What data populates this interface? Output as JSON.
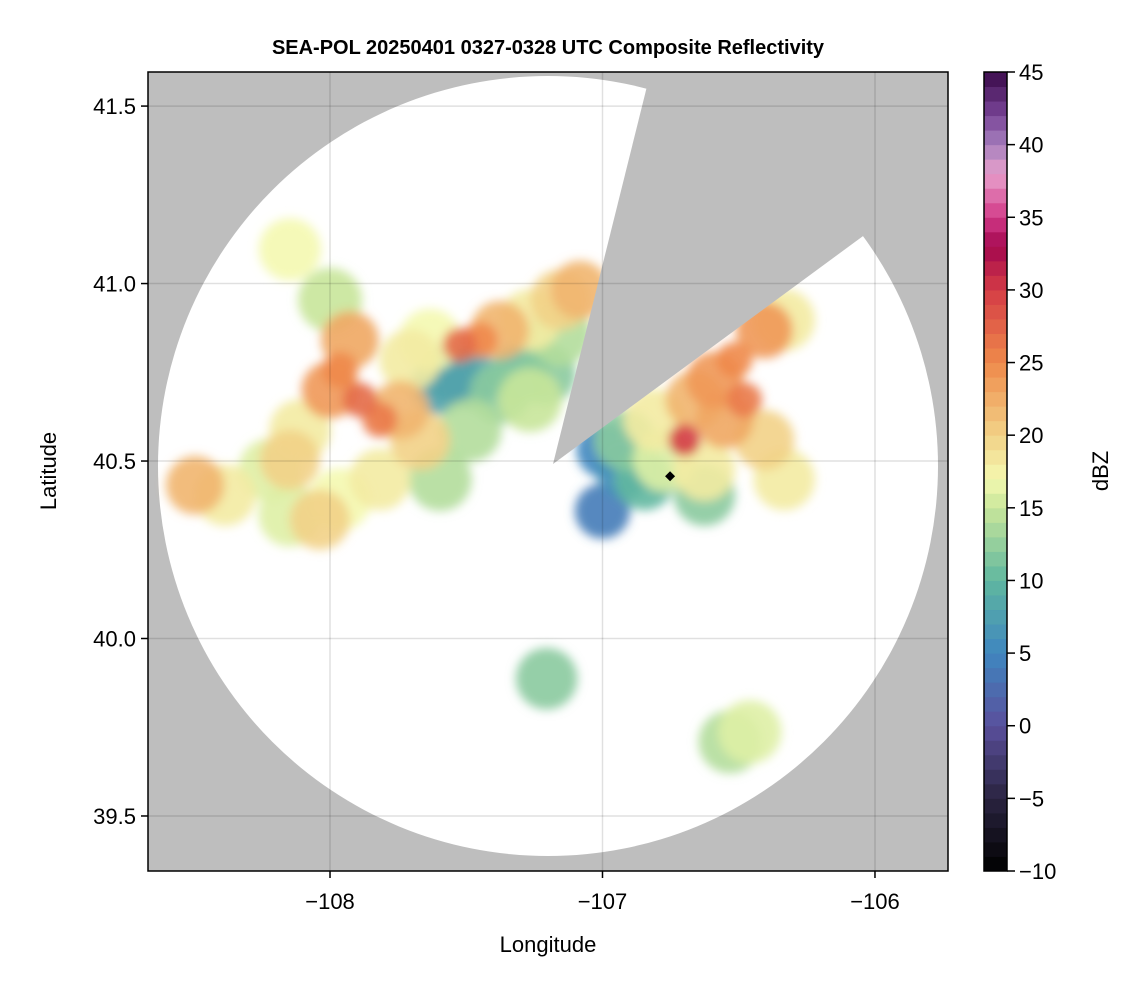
{
  "chart_data": {
    "type": "heatmap",
    "title": "SEA-POL 20250401 0327-0328 UTC Composite Reflectivity",
    "xlabel": "Longitude",
    "ylabel": "Latitude",
    "xlim": [
      -108.668,
      -105.732
    ],
    "ylim": [
      39.345,
      41.596
    ],
    "xticks": [
      -108,
      -107,
      -106
    ],
    "xtick_labels": [
      "−108",
      "−107",
      "−106"
    ],
    "yticks": [
      39.5,
      40.0,
      40.5,
      41.0,
      41.5
    ],
    "ytick_labels": [
      "39.5",
      "40.0",
      "40.5",
      "41.0",
      "41.5"
    ],
    "grid": true,
    "background_color": "#bebebe",
    "colorbar": {
      "label": "dBZ",
      "range": [
        -10,
        45
      ],
      "step": 1,
      "ticks": [
        45,
        40,
        35,
        30,
        25,
        20,
        15,
        10,
        5,
        0,
        -5,
        -10
      ],
      "tick_labels": [
        "45",
        "40",
        "35",
        "30",
        "25",
        "20",
        "15",
        "10",
        "5",
        "0",
        "−5",
        "−10"
      ],
      "color_stops": [
        [
          -10,
          "#000000"
        ],
        [
          -5,
          "#2a2440"
        ],
        [
          0,
          "#5a4f9c"
        ],
        [
          5,
          "#3f86bf"
        ],
        [
          10,
          "#5fb7a0"
        ],
        [
          15,
          "#c8e69a"
        ],
        [
          17,
          "#f4f8b0"
        ],
        [
          20,
          "#f2d287"
        ],
        [
          25,
          "#ef8a4b"
        ],
        [
          30,
          "#d43c45"
        ],
        [
          33,
          "#a3074f"
        ],
        [
          35,
          "#d23a88"
        ],
        [
          38,
          "#e8a0cc"
        ],
        [
          40,
          "#a680bd"
        ],
        [
          42,
          "#7a4598"
        ],
        [
          45,
          "#3a0a4a"
        ]
      ]
    },
    "radar_site": {
      "lon": -107.18,
      "lat": 40.49
    },
    "marker": {
      "lon": -106.752,
      "lat": 40.457,
      "shape": "diamond",
      "color": "#000000"
    },
    "echoes": [
      [
        -107.963,
        40.756,
        25
      ],
      [
        -107.89,
        40.672,
        27
      ],
      [
        -107.817,
        40.616,
        26
      ],
      [
        -108.0,
        40.7,
        24
      ],
      [
        -107.927,
        40.841,
        23
      ],
      [
        -107.743,
        40.644,
        22
      ],
      [
        -107.67,
        40.559,
        20
      ],
      [
        -108.11,
        40.587,
        18
      ],
      [
        -108.147,
        40.503,
        20
      ],
      [
        -108.22,
        40.475,
        16
      ],
      [
        -108.037,
        40.335,
        20
      ],
      [
        -107.963,
        40.392,
        17
      ],
      [
        -107.817,
        40.448,
        18
      ],
      [
        -107.706,
        40.785,
        18
      ],
      [
        -107.633,
        40.841,
        17
      ],
      [
        -107.523,
        40.827,
        27
      ],
      [
        -107.45,
        40.841,
        25
      ],
      [
        -107.376,
        40.869,
        22
      ],
      [
        -107.266,
        40.897,
        18
      ],
      [
        -107.156,
        40.954,
        20
      ],
      [
        -107.083,
        40.982,
        22
      ],
      [
        -107.486,
        40.728,
        8
      ],
      [
        -107.596,
        40.714,
        8
      ],
      [
        -107.56,
        40.749,
        8
      ],
      [
        -107.376,
        40.692,
        12
      ],
      [
        -107.303,
        40.749,
        10
      ],
      [
        -107.486,
        40.587,
        14
      ],
      [
        -107.596,
        40.448,
        14
      ],
      [
        -108.495,
        40.432,
        22
      ],
      [
        -108.385,
        40.404,
        18
      ],
      [
        -108.147,
        40.348,
        16
      ],
      [
        -108.0,
        40.954,
        15
      ],
      [
        -108.147,
        41.096,
        17
      ],
      [
        -107.211,
        40.744,
        12
      ],
      [
        -107.156,
        40.856,
        14
      ],
      [
        -107.266,
        40.672,
        15
      ],
      [
        -106.993,
        40.531,
        5
      ],
      [
        -106.919,
        40.559,
        12
      ],
      [
        -106.809,
        40.616,
        18
      ],
      [
        -106.662,
        40.672,
        22
      ],
      [
        -106.589,
        40.728,
        24
      ],
      [
        -106.516,
        40.785,
        25
      ],
      [
        -106.406,
        40.869,
        24
      ],
      [
        -106.479,
        40.672,
        26
      ],
      [
        -106.552,
        40.616,
        23
      ],
      [
        -106.699,
        40.559,
        30
      ],
      [
        -106.772,
        40.503,
        16
      ],
      [
        -106.626,
        40.475,
        18
      ],
      [
        -106.406,
        40.559,
        20
      ],
      [
        -106.333,
        40.897,
        18
      ],
      [
        -106.846,
        40.446,
        10
      ],
      [
        -106.919,
        40.475,
        6
      ],
      [
        -106.626,
        40.404,
        12
      ],
      [
        -106.333,
        40.448,
        18
      ],
      [
        -106.459,
        39.737,
        16
      ],
      [
        -106.532,
        39.709,
        14
      ],
      [
        -107.0,
        40.359,
        4
      ],
      [
        -107.205,
        39.887,
        12
      ]
    ]
  }
}
